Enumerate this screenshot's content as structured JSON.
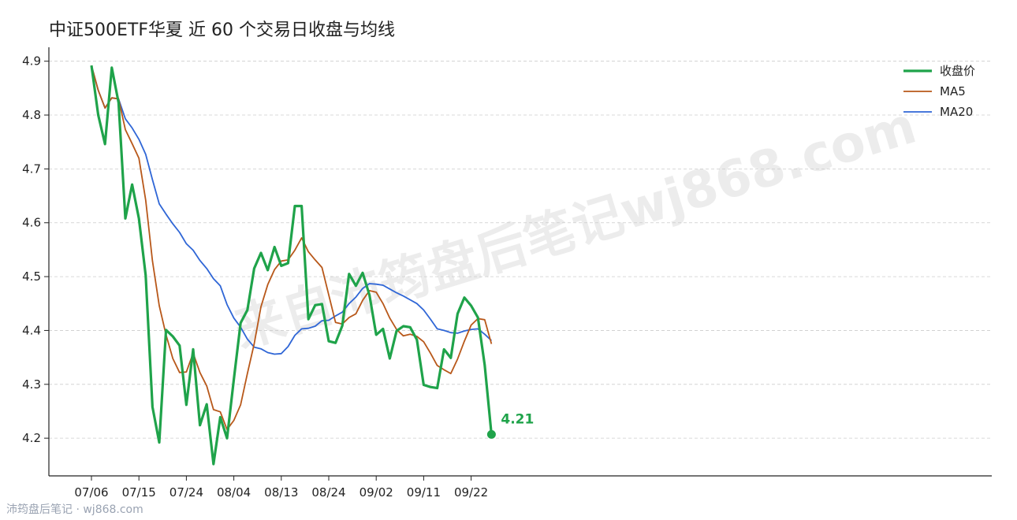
{
  "title": "中证500ETF华夏 近 60 个交易日收盘与均线",
  "watermark": "来自沛筠盘后笔记wj868.com",
  "footer": "沛筠盘后笔记 · wj868.com",
  "colors": {
    "close": "#1fa34a",
    "ma5": "#b8581a",
    "ma20": "#2f66d6",
    "axis": "#222222",
    "grid": "#cccccc"
  },
  "legend": {
    "placement": "top-right",
    "entries": [
      "收盘价",
      "MA5",
      "MA20"
    ]
  },
  "last_value_label": "4.21",
  "chart_data": {
    "type": "line",
    "ylim": [
      4.13,
      4.92
    ],
    "yticks": [
      4.2,
      4.3,
      4.4,
      4.5,
      4.6,
      4.7,
      4.8,
      4.9
    ],
    "xtick_labels": [
      "07/06",
      "07/15",
      "07/24",
      "08/04",
      "08/13",
      "08/24",
      "09/02",
      "09/11",
      "09/22"
    ],
    "xtick_indices": [
      0,
      7,
      14,
      21,
      28,
      35,
      42,
      49,
      56
    ],
    "grid": true,
    "series": [
      {
        "name": "收盘价",
        "values": [
          4.892,
          4.8,
          4.746,
          4.888,
          4.823,
          4.608,
          4.671,
          4.608,
          4.502,
          4.258,
          4.192,
          4.401,
          4.389,
          4.372,
          4.262,
          4.365,
          4.224,
          4.263,
          4.152,
          4.239,
          4.2,
          4.309,
          4.414,
          4.438,
          4.515,
          4.544,
          4.512,
          4.555,
          4.52,
          4.525,
          4.631,
          4.631,
          4.421,
          4.447,
          4.449,
          4.38,
          4.377,
          4.409,
          4.505,
          4.483,
          4.507,
          4.466,
          4.392,
          4.403,
          4.348,
          4.399,
          4.408,
          4.406,
          4.383,
          4.299,
          4.295,
          4.293,
          4.365,
          4.349,
          4.431,
          4.461,
          4.446,
          4.424,
          4.336,
          4.207
        ]
      },
      {
        "name": "MA5",
        "values": [
          4.892,
          4.846,
          4.813,
          4.832,
          4.83,
          4.773,
          4.747,
          4.72,
          4.642,
          4.529,
          4.446,
          4.392,
          4.348,
          4.322,
          4.323,
          4.358,
          4.322,
          4.297,
          4.253,
          4.249,
          4.216,
          4.233,
          4.262,
          4.32,
          4.375,
          4.444,
          4.485,
          4.513,
          4.529,
          4.531,
          4.549,
          4.572,
          4.546,
          4.531,
          4.517,
          4.466,
          4.415,
          4.412,
          4.424,
          4.431,
          4.456,
          4.474,
          4.471,
          4.45,
          4.423,
          4.402,
          4.39,
          4.393,
          4.389,
          4.379,
          4.358,
          4.335,
          4.327,
          4.32,
          4.347,
          4.38,
          4.41,
          4.422,
          4.42,
          4.375
        ]
      },
      {
        "name": "MA20",
        "values": [
          4.892,
          4.846,
          4.813,
          4.832,
          4.83,
          4.793,
          4.776,
          4.755,
          4.727,
          4.68,
          4.635,
          4.616,
          4.598,
          4.582,
          4.561,
          4.549,
          4.53,
          4.515,
          4.496,
          4.483,
          4.448,
          4.423,
          4.406,
          4.384,
          4.369,
          4.366,
          4.359,
          4.356,
          4.357,
          4.37,
          4.391,
          4.403,
          4.404,
          4.408,
          4.418,
          4.419,
          4.427,
          4.434,
          4.45,
          4.462,
          4.478,
          4.487,
          4.486,
          4.484,
          4.477,
          4.47,
          4.464,
          4.457,
          4.45,
          4.438,
          4.421,
          4.403,
          4.4,
          4.396,
          4.395,
          4.399,
          4.402,
          4.403,
          4.393,
          4.381
        ]
      }
    ]
  }
}
